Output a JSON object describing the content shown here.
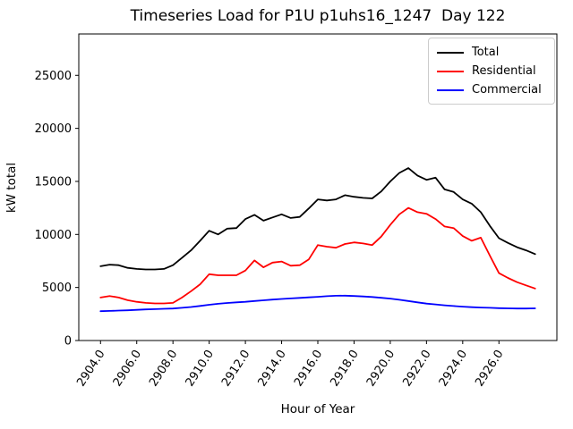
{
  "chart_data": {
    "type": "line",
    "title": "Timeseries Load for P1U p1uhs16_1247  Day 122",
    "xlabel": "Hour of Year",
    "ylabel": "kW total",
    "xlim": [
      2902.8,
      2929.2
    ],
    "ylim": [
      0,
      28900
    ],
    "grid": false,
    "legend": {
      "position": "upper right",
      "entries": [
        "Total",
        "Residential",
        "Commercial"
      ]
    },
    "x_ticks": [
      2904,
      2906,
      2908,
      2910,
      2912,
      2914,
      2916,
      2918,
      2920,
      2922,
      2924,
      2926
    ],
    "x_tick_labels": [
      "2904.0",
      "2906.0",
      "2908.0",
      "2910.0",
      "2912.0",
      "2914.0",
      "2916.0",
      "2918.0",
      "2920.0",
      "2922.0",
      "2924.0",
      "2926.0"
    ],
    "y_ticks": [
      0,
      5000,
      10000,
      15000,
      20000,
      25000
    ],
    "y_tick_labels": [
      "0",
      "5000",
      "10000",
      "15000",
      "20000",
      "25000"
    ],
    "x": [
      2904,
      2904.5,
      2905,
      2905.5,
      2906,
      2906.5,
      2907,
      2907.5,
      2908,
      2908.5,
      2909,
      2909.5,
      2910,
      2910.5,
      2911,
      2911.5,
      2912,
      2912.5,
      2913,
      2913.5,
      2914,
      2914.5,
      2915,
      2915.5,
      2916,
      2916.5,
      2917,
      2917.5,
      2918,
      2918.5,
      2919,
      2919.5,
      2920,
      2920.5,
      2921,
      2921.5,
      2922,
      2922.5,
      2923,
      2923.5,
      2924,
      2924.5,
      2925,
      2925.5,
      2926,
      2926.5,
      2927,
      2927.5,
      2928
    ],
    "series": [
      {
        "name": "Total",
        "color": "#000000",
        "values": [
          7000,
          7150,
          7100,
          6850,
          6750,
          6700,
          6700,
          6750,
          7100,
          7800,
          8500,
          9400,
          10350,
          10000,
          10550,
          10600,
          11450,
          11850,
          11300,
          11600,
          11900,
          11550,
          11650,
          12450,
          13300,
          13200,
          13300,
          13700,
          13550,
          13450,
          13400,
          14050,
          15000,
          15800,
          16250,
          15550,
          15150,
          15350,
          14250,
          14000,
          13300,
          12900,
          12100,
          10800,
          9650,
          9200,
          8800,
          8500,
          8150
        ]
      },
      {
        "name": "Residential",
        "color": "#ff0000",
        "values": [
          4050,
          4200,
          4050,
          3800,
          3650,
          3550,
          3500,
          3500,
          3550,
          4050,
          4650,
          5300,
          6250,
          6150,
          6150,
          6150,
          6600,
          7550,
          6900,
          7350,
          7450,
          7050,
          7100,
          7650,
          9000,
          8850,
          8750,
          9100,
          9250,
          9150,
          9000,
          9800,
          10900,
          11900,
          12500,
          12100,
          11950,
          11450,
          10750,
          10600,
          9850,
          9400,
          9700,
          8000,
          6350,
          5900,
          5500,
          5200,
          4900
        ]
      },
      {
        "name": "Commercial",
        "color": "#0000ff",
        "values": [
          2760,
          2790,
          2820,
          2850,
          2890,
          2930,
          2960,
          2990,
          3020,
          3080,
          3160,
          3260,
          3370,
          3460,
          3540,
          3600,
          3650,
          3720,
          3790,
          3860,
          3920,
          3970,
          4020,
          4070,
          4120,
          4180,
          4220,
          4230,
          4200,
          4150,
          4100,
          4030,
          3950,
          3840,
          3720,
          3600,
          3480,
          3400,
          3320,
          3250,
          3190,
          3140,
          3110,
          3080,
          3050,
          3030,
          3020,
          3020,
          3030
        ]
      }
    ]
  }
}
